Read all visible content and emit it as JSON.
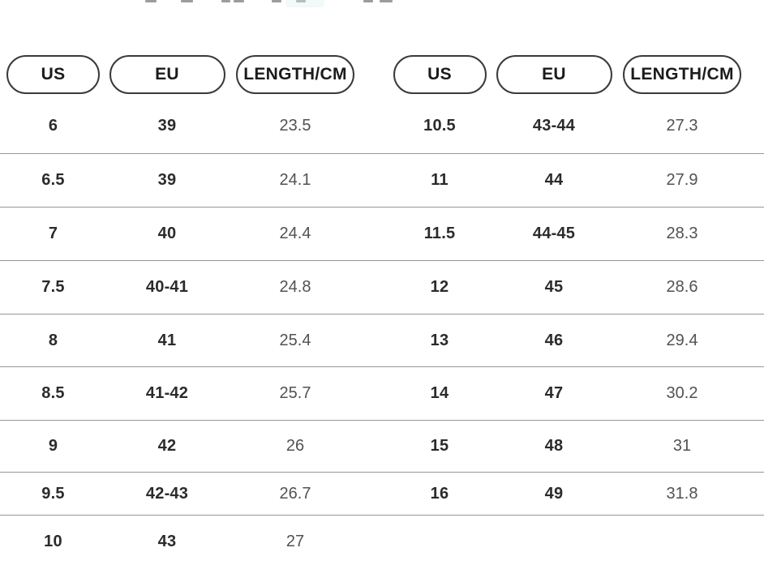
{
  "page": {
    "background": "#ffffff"
  },
  "cropped_top_bar": {
    "note_visible": "bottom edge of cut-off text row",
    "highlight_color": "#f1f9f9"
  },
  "colors": {
    "pill_border": "#3a3a3a",
    "pill_text": "#1b1b1b",
    "size_value_text": "#2b2b2b",
    "length_value_text": "#525252",
    "divider": "#979797"
  },
  "size_chart": {
    "left": {
      "headers": [
        "US",
        "EU",
        "LENGTH/CM"
      ],
      "rows": [
        [
          "6",
          "39",
          "23.5"
        ],
        [
          "6.5",
          "39",
          "24.1"
        ],
        [
          "7",
          "40",
          "24.4"
        ],
        [
          "7.5",
          "40-41",
          "24.8"
        ],
        [
          "8",
          "41",
          "25.4"
        ],
        [
          "8.5",
          "41-42",
          "25.7"
        ],
        [
          "9",
          "42",
          "26"
        ],
        [
          "9.5",
          "42-43",
          "26.7"
        ],
        [
          "10",
          "43",
          "27"
        ]
      ]
    },
    "right": {
      "headers": [
        "US",
        "EU",
        "LENGTH/CM"
      ],
      "rows": [
        [
          "10.5",
          "43-44",
          "27.3"
        ],
        [
          "11",
          "44",
          "27.9"
        ],
        [
          "11.5",
          "44-45",
          "28.3"
        ],
        [
          "12",
          "45",
          "28.6"
        ],
        [
          "13",
          "46",
          "29.4"
        ],
        [
          "14",
          "47",
          "30.2"
        ],
        [
          "15",
          "48",
          "31"
        ],
        [
          "16",
          "49",
          "31.8"
        ]
      ]
    }
  }
}
